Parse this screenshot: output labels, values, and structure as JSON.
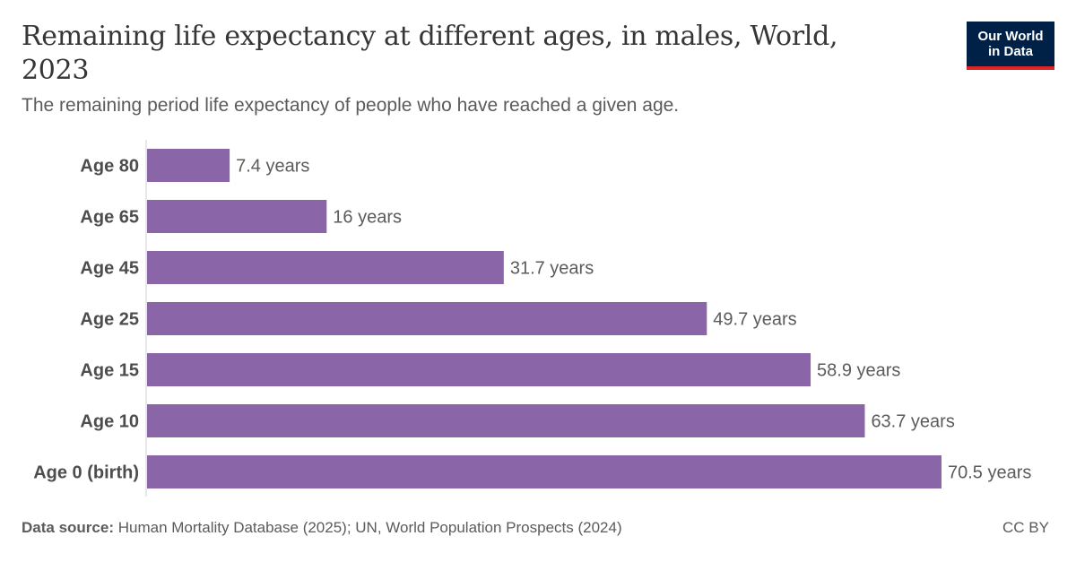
{
  "header": {
    "title": "Remaining life expectancy at different ages, in males, World, 2023",
    "subtitle": "The remaining period life expectancy of people who have reached a given age."
  },
  "logo": {
    "line1": "Our World",
    "line2": "in Data",
    "background": "#002147",
    "accent": "#dc2626"
  },
  "footer": {
    "source_label": "Data source:",
    "source_text": "Human Mortality Database (2025); UN, World Population Prospects (2024)",
    "license": "CC BY"
  },
  "chart_data": {
    "type": "bar",
    "orientation": "horizontal",
    "categories": [
      "Age 80",
      "Age 65",
      "Age 45",
      "Age 25",
      "Age 15",
      "Age 10",
      "Age 0 (birth)"
    ],
    "values": [
      7.4,
      16,
      31.7,
      49.7,
      58.9,
      63.7,
      70.5
    ],
    "value_labels": [
      "7.4 years",
      "16 years",
      "31.7 years",
      "49.7 years",
      "58.9 years",
      "63.7 years",
      "70.5 years"
    ],
    "unit": "years",
    "xlim": [
      0,
      70.5
    ],
    "bar_color": "#8a66a8",
    "grid": false
  }
}
